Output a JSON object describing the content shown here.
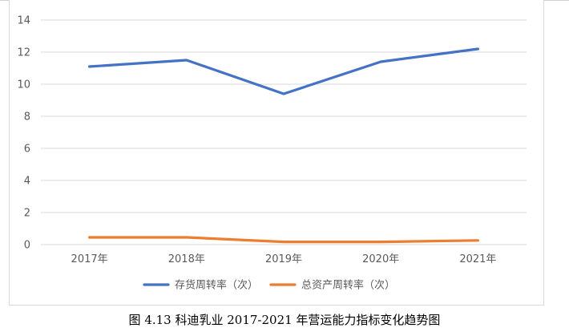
{
  "chart_data": {
    "type": "line",
    "categories": [
      "2017年",
      "2018年",
      "2019年",
      "2020年",
      "2021年"
    ],
    "series": [
      {
        "name": "存货周转率（次）",
        "color": "#4472c4",
        "values": [
          11.1,
          11.5,
          9.4,
          11.4,
          12.2
        ]
      },
      {
        "name": "总资产周转率（次）",
        "color": "#ed7d31",
        "values": [
          0.45,
          0.45,
          0.17,
          0.17,
          0.26
        ]
      }
    ],
    "ylim": [
      0,
      14
    ],
    "yticks": [
      "0",
      "2",
      "4",
      "6",
      "8",
      "10",
      "12",
      "14"
    ],
    "grid": true,
    "legend_position": "bottom"
  },
  "caption": "图 4.13 科迪乳业 2017-2021 年营运能力指标变化趋势图"
}
